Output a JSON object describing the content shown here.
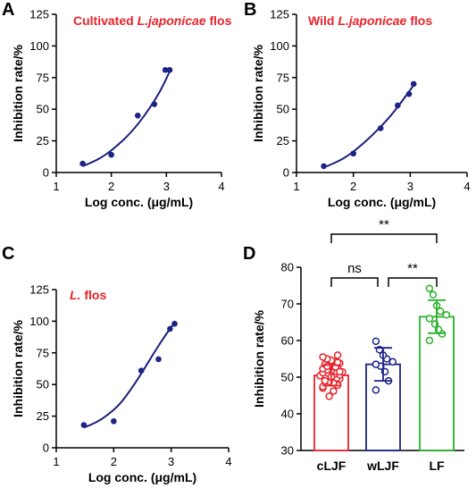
{
  "colors": {
    "curve": "#1a1f7a",
    "point": "#1c2385",
    "title_red": "#e8232b",
    "cLJF": "#e8232b",
    "wLJF": "#1c2385",
    "LF": "#2bb02b",
    "axis": "#000000"
  },
  "chart_data": [
    {
      "panel": "A",
      "type": "scatter",
      "title_prefix": "Cultivated ",
      "title_italic": "L.japonicae",
      "title_suffix": " flos",
      "xlabel": "Log conc. (μg/mL)",
      "ylabel": "Inhibition rate/%",
      "xlim": [
        1,
        4
      ],
      "ylim": [
        0,
        125
      ],
      "xticks": [
        1,
        2,
        3,
        4
      ],
      "yticks": [
        0,
        25,
        50,
        75,
        100,
        125
      ],
      "points": [
        {
          "x": 1.48,
          "y": 7
        },
        {
          "x": 2.0,
          "y": 14
        },
        {
          "x": 2.48,
          "y": 45
        },
        {
          "x": 2.78,
          "y": 54
        },
        {
          "x": 2.98,
          "y": 81
        },
        {
          "x": 3.06,
          "y": 81
        }
      ],
      "fit": [
        [
          1.48,
          5
        ],
        [
          1.7,
          9
        ],
        [
          1.9,
          14
        ],
        [
          2.1,
          21
        ],
        [
          2.3,
          29
        ],
        [
          2.5,
          39
        ],
        [
          2.7,
          51
        ],
        [
          2.9,
          65
        ],
        [
          3.05,
          79
        ]
      ]
    },
    {
      "panel": "B",
      "type": "scatter",
      "title_prefix": "Wild ",
      "title_italic": "L.japonicae",
      "title_suffix": " flos",
      "xlabel": "Log conc. (μg/mL)",
      "ylabel": "Inhibition rate/%",
      "xlim": [
        1,
        4
      ],
      "ylim": [
        0,
        125
      ],
      "xticks": [
        1,
        2,
        3,
        4
      ],
      "yticks": [
        0,
        25,
        50,
        75,
        100,
        125
      ],
      "points": [
        {
          "x": 1.48,
          "y": 5
        },
        {
          "x": 2.0,
          "y": 15
        },
        {
          "x": 2.48,
          "y": 35
        },
        {
          "x": 2.78,
          "y": 53
        },
        {
          "x": 2.98,
          "y": 62
        },
        {
          "x": 3.06,
          "y": 70
        }
      ],
      "fit": [
        [
          1.48,
          4
        ],
        [
          1.7,
          8
        ],
        [
          1.9,
          13
        ],
        [
          2.1,
          20
        ],
        [
          2.3,
          28
        ],
        [
          2.5,
          37
        ],
        [
          2.7,
          47
        ],
        [
          2.9,
          59
        ],
        [
          3.06,
          69
        ]
      ]
    },
    {
      "panel": "C",
      "type": "scatter",
      "title_prefix": "",
      "title_italic": "L.",
      "title_suffix": " flos",
      "xlabel": "Log conc. (μg/mL)",
      "ylabel": "Inhibition rate/%",
      "xlim": [
        1,
        4
      ],
      "ylim": [
        0,
        125
      ],
      "xticks": [
        1,
        2,
        3,
        4
      ],
      "yticks": [
        0,
        25,
        50,
        75,
        100,
        125
      ],
      "points": [
        {
          "x": 1.48,
          "y": 18
        },
        {
          "x": 2.0,
          "y": 21
        },
        {
          "x": 2.48,
          "y": 61
        },
        {
          "x": 2.78,
          "y": 70
        },
        {
          "x": 2.98,
          "y": 94
        },
        {
          "x": 3.06,
          "y": 98
        }
      ],
      "fit": [
        [
          1.48,
          16
        ],
        [
          1.7,
          20
        ],
        [
          1.9,
          26
        ],
        [
          2.1,
          34
        ],
        [
          2.3,
          46
        ],
        [
          2.5,
          60
        ],
        [
          2.7,
          75
        ],
        [
          2.9,
          89
        ],
        [
          3.06,
          99
        ]
      ]
    },
    {
      "panel": "D",
      "type": "bar",
      "categories": [
        "cLJF",
        "wLJF",
        "LF"
      ],
      "values": [
        50.5,
        53.5,
        66.5
      ],
      "sd": [
        2.8,
        4.5,
        4.5
      ],
      "ylabel": "Inhibition rate/%",
      "ylim": [
        30,
        80
      ],
      "yticks": [
        30,
        40,
        50,
        60,
        70,
        80
      ],
      "significance": [
        {
          "from": "cLJF",
          "to": "wLJF",
          "label": "ns"
        },
        {
          "from": "wLJF",
          "to": "LF",
          "label": "**"
        },
        {
          "from": "cLJF",
          "to": "LF",
          "label": "**"
        }
      ],
      "points": {
        "cLJF": [
          47.0,
          47.8,
          48.4,
          48.8,
          49.2,
          49.5,
          49.8,
          50.0,
          50.2,
          50.4,
          50.6,
          50.8,
          51.0,
          51.2,
          51.4,
          51.6,
          51.8,
          52.0,
          52.3,
          52.6,
          52.9,
          53.2,
          53.5,
          53.8,
          54.2,
          54.6,
          55.0,
          55.5,
          56.0,
          46.2,
          44.8,
          49.0,
          51.5,
          52.8,
          50.1,
          53.0,
          47.4,
          54.0
        ],
        "wLJF": [
          46.5,
          49.0,
          51.5,
          53.0,
          53.5,
          54.2,
          55.0,
          56.0,
          57.5,
          59.8
        ],
        "LF": [
          60.0,
          61.8,
          63.0,
          64.5,
          66.0,
          67.0,
          68.0,
          69.5,
          72.5,
          74.2
        ]
      }
    }
  ]
}
